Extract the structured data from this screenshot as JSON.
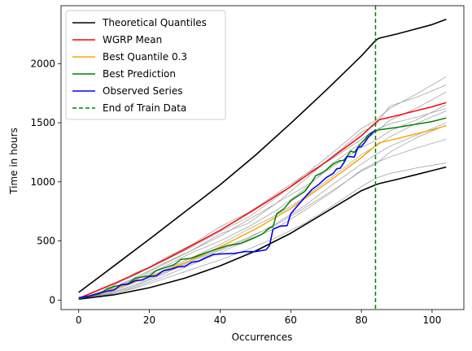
{
  "chart_data": {
    "type": "line",
    "xlabel": "Occurrences",
    "ylabel": "Time in hours",
    "xlim": [
      -5,
      109
    ],
    "ylim": [
      -80,
      2490
    ],
    "xticks": [
      0,
      20,
      40,
      60,
      80,
      100
    ],
    "yticks": [
      0,
      500,
      1000,
      1500,
      2000
    ],
    "grid": false,
    "legend_position": "top-left",
    "vline": {
      "x": 84,
      "name": "End of Train Data",
      "color": "#008000",
      "style": "dashed"
    },
    "series": [
      {
        "name": "Theoretical Quantiles",
        "color": "#000000",
        "width": 1.6,
        "x": [
          0,
          10,
          20,
          30,
          40,
          50,
          60,
          70,
          80,
          84,
          85,
          90,
          100,
          104
        ],
        "y": [
          65,
          290,
          515,
          745,
          975,
          1225,
          1495,
          1775,
          2065,
          2195,
          2215,
          2250,
          2330,
          2375
        ]
      },
      {
        "name": "Theoretical Quantiles",
        "color": "#000000",
        "width": 1.6,
        "legend": false,
        "x": [
          0,
          10,
          20,
          30,
          40,
          50,
          60,
          70,
          80,
          84,
          85,
          90,
          100,
          104
        ],
        "y": [
          8,
          45,
          105,
          185,
          290,
          415,
          565,
          745,
          925,
          975,
          985,
          1020,
          1095,
          1125
        ]
      },
      {
        "name": "WGRP Mean",
        "color": "#ff0000",
        "width": 1.5,
        "x": [
          0,
          10,
          20,
          30,
          40,
          50,
          60,
          70,
          80,
          84,
          85,
          90,
          100,
          104
        ],
        "y": [
          15,
          140,
          275,
          430,
          590,
          770,
          960,
          1170,
          1390,
          1500,
          1525,
          1560,
          1635,
          1670
        ]
      },
      {
        "name": "Best Quantile 0.3",
        "color": "#ffa500",
        "width": 1.5,
        "x": [
          0,
          10,
          20,
          30,
          40,
          50,
          60,
          70,
          80,
          84,
          85,
          90,
          100,
          104
        ],
        "y": [
          12,
          95,
          195,
          315,
          450,
          600,
          775,
          985,
          1205,
          1305,
          1330,
          1365,
          1440,
          1475
        ]
      },
      {
        "name": "Best Prediction",
        "color": "#008000",
        "width": 1.5,
        "x": [
          0,
          6,
          8,
          10,
          14,
          16,
          20,
          22,
          24,
          27,
          29,
          32,
          36,
          38,
          42,
          46,
          50,
          52,
          54,
          55,
          56,
          58,
          60,
          62,
          64,
          66,
          67,
          69,
          70,
          72,
          74,
          75,
          77,
          78,
          80,
          81,
          82,
          83,
          84,
          85,
          90,
          100,
          104
        ],
        "y": [
          10,
          55,
          95,
          115,
          140,
          185,
          205,
          250,
          270,
          300,
          345,
          355,
          400,
          420,
          460,
          480,
          530,
          560,
          610,
          620,
          730,
          770,
          840,
          880,
          920,
          1000,
          1050,
          1080,
          1100,
          1150,
          1180,
          1180,
          1260,
          1250,
          1330,
          1360,
          1400,
          1420,
          1430,
          1440,
          1460,
          1510,
          1540
        ]
      },
      {
        "name": "Observed Series",
        "color": "#0000ff",
        "width": 1.6,
        "x": [
          0,
          3,
          6,
          8,
          10,
          12,
          14,
          16,
          18,
          20,
          22,
          24,
          26,
          28,
          30,
          32,
          34,
          36,
          38,
          40,
          44,
          47,
          50,
          53,
          54,
          55,
          57,
          59,
          60,
          62,
          64,
          66,
          68,
          70,
          72,
          73,
          74,
          75,
          76,
          78,
          79,
          80,
          81,
          82,
          83,
          84
        ],
        "y": [
          20,
          35,
          60,
          75,
          85,
          130,
          135,
          165,
          170,
          200,
          205,
          250,
          260,
          280,
          285,
          320,
          330,
          360,
          385,
          390,
          395,
          410,
          410,
          425,
          460,
          600,
          625,
          630,
          730,
          800,
          870,
          935,
          980,
          1035,
          1070,
          1110,
          1115,
          1160,
          1215,
          1210,
          1290,
          1300,
          1335,
          1380,
          1410,
          1440
        ]
      }
    ],
    "simulations": {
      "color": "#999999",
      "width": 0.7,
      "x": [
        0,
        8,
        16,
        24,
        32,
        40,
        48,
        56,
        64,
        72,
        80,
        84,
        88,
        96,
        104
      ],
      "paths": [
        [
          10,
          90,
          230,
          330,
          450,
          580,
          700,
          870,
          1060,
          1250,
          1450,
          1520,
          1620,
          1750,
          1890
        ],
        [
          10,
          80,
          190,
          310,
          420,
          560,
          650,
          820,
          1020,
          1220,
          1420,
          1480,
          1640,
          1720,
          1820
        ],
        [
          5,
          70,
          170,
          280,
          400,
          500,
          620,
          760,
          940,
          1160,
          1330,
          1420,
          1520,
          1630,
          1760
        ],
        [
          8,
          60,
          150,
          250,
          360,
          470,
          600,
          720,
          870,
          1050,
          1230,
          1300,
          1380,
          1500,
          1600
        ],
        [
          12,
          110,
          210,
          350,
          470,
          620,
          740,
          900,
          1060,
          1200,
          1360,
          1440,
          1490,
          1550,
          1620
        ],
        [
          6,
          50,
          120,
          220,
          330,
          420,
          520,
          650,
          800,
          980,
          1150,
          1230,
          1300,
          1400,
          1500
        ],
        [
          5,
          40,
          110,
          200,
          300,
          400,
          510,
          610,
          760,
          920,
          1100,
          1160,
          1210,
          1290,
          1360
        ],
        [
          4,
          45,
          100,
          180,
          260,
          340,
          430,
          530,
          650,
          800,
          960,
          1030,
          1070,
          1120,
          1160
        ],
        [
          7,
          55,
          130,
          230,
          340,
          430,
          530,
          640,
          780,
          930,
          1090,
          1150,
          1250,
          1380,
          1480
        ],
        [
          9,
          85,
          180,
          300,
          420,
          540,
          680,
          820,
          960,
          1130,
          1290,
          1350,
          1430,
          1530,
          1650
        ]
      ]
    }
  }
}
